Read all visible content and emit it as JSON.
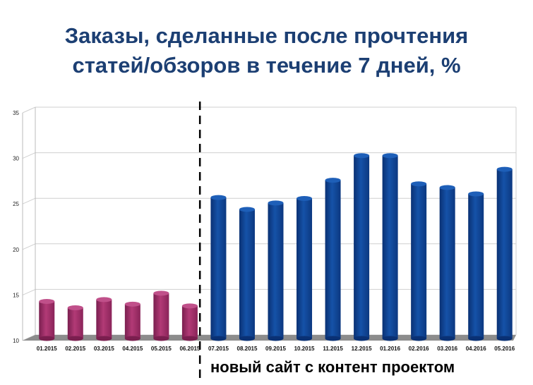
{
  "chart_data": {
    "type": "bar",
    "title_lines": [
      "Заказы, сделанные после прочтения",
      "статей/обзоров в течение 7 дней, %"
    ],
    "categories": [
      "01.2015",
      "02.2015",
      "03.2015",
      "04.2015",
      "05.2015",
      "06.2015",
      "07.2015",
      "08.2015",
      "09.2015",
      "10.2015",
      "11.2015",
      "12.2015",
      "01.2016",
      "02.2016",
      "03.2016",
      "04.2016",
      "05.2016"
    ],
    "values": [
      14.3,
      13.6,
      14.5,
      14.0,
      15.2,
      13.8,
      25.7,
      24.4,
      25.1,
      25.6,
      27.6,
      30.3,
      30.3,
      27.2,
      26.8,
      26.1,
      28.8
    ],
    "ylim": [
      10,
      35
    ],
    "yticks": [
      10,
      15,
      20,
      25,
      30,
      35
    ],
    "grid": true,
    "colors": {
      "before": "#9b2d66",
      "after": "#0e3f8c",
      "floor": "#8c8c8c",
      "title": "#1c3f73"
    },
    "divider_after_index": 5,
    "annotation": "новый сайт с контент проектом"
  }
}
